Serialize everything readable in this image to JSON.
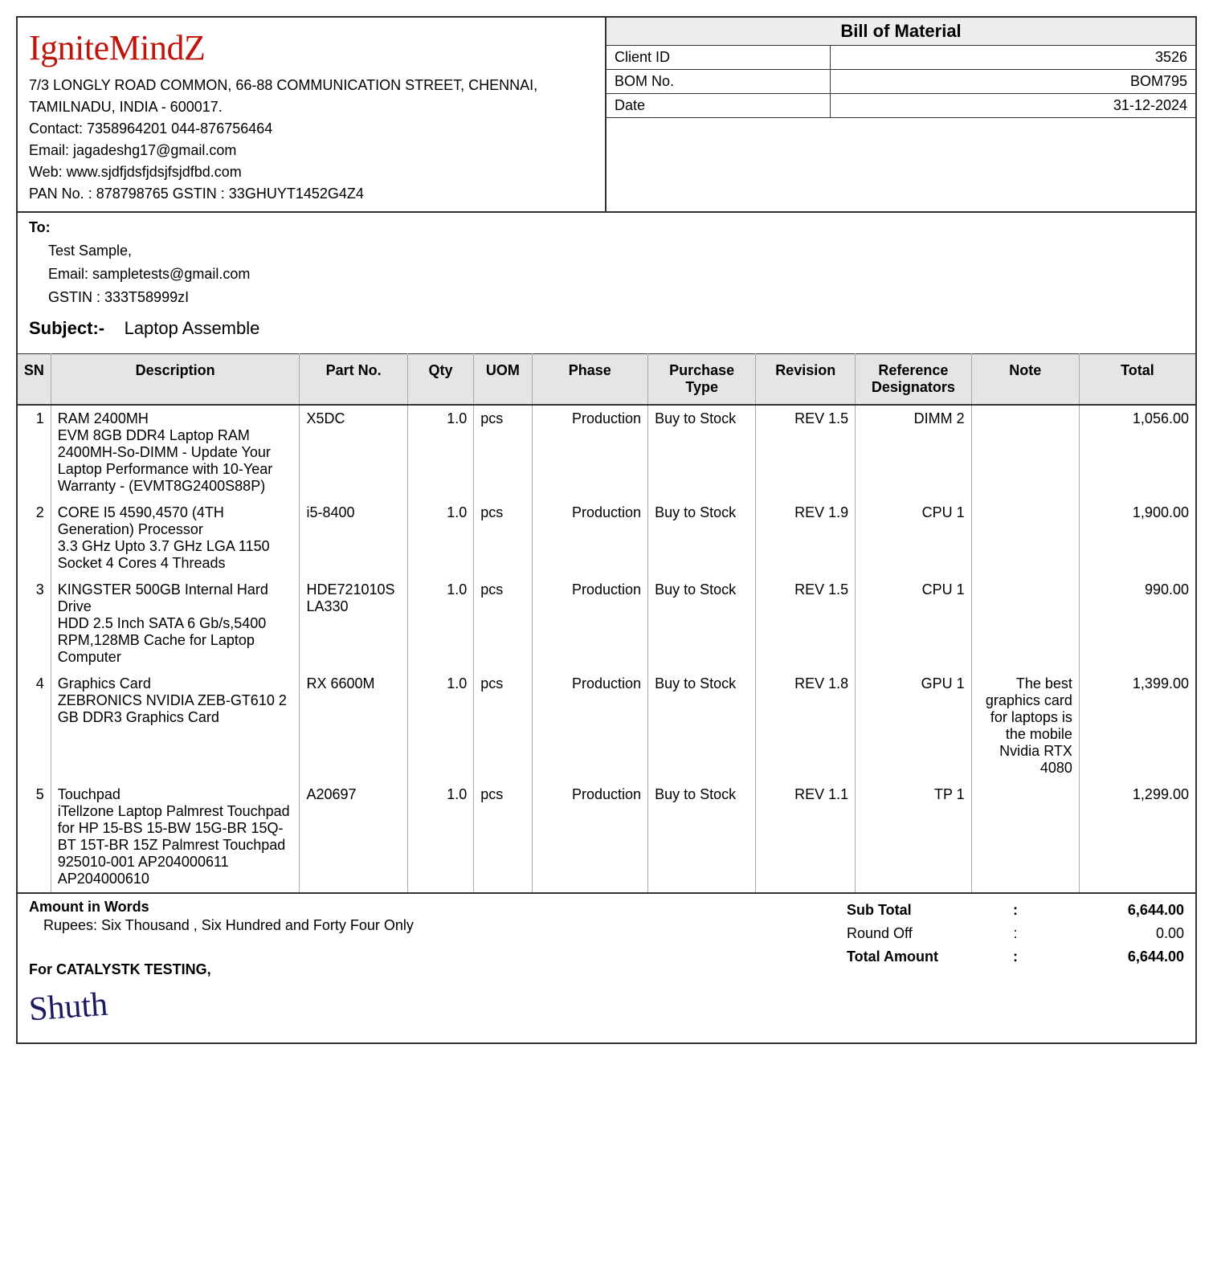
{
  "company": {
    "name": "IgniteMindZ",
    "address_line1": "7/3 LONGLY ROAD COMMON, 66-88 COMMUNICATION STREET, CHENNAI,",
    "address_line2": "TAMILNADU, INDIA - 600017.",
    "contact_label": "Contact: 7358964201 044-876756464",
    "email_label": "Email: jagadeshg17@gmail.com",
    "web_label": "Web: www.sjdfjdsfjdsjfsjdfbd.com",
    "pan_label": "PAN No. : 878798765 GSTIN : 33GHUYT1452G4Z4"
  },
  "header": {
    "title": "Bill of Material",
    "client_id_label": "Client ID",
    "client_id": "3526",
    "bom_no_label": "BOM No.",
    "bom_no": "BOM795",
    "date_label": "Date",
    "date": "31-12-2024"
  },
  "to": {
    "label": "To:",
    "name": "Test Sample,",
    "email": "Email: sampletests@gmail.com",
    "gstin": "GSTIN : 333T58999zI"
  },
  "subject": {
    "label": "Subject:-",
    "text": "Laptop Assemble"
  },
  "columns": {
    "sn": "SN",
    "desc": "Description",
    "part": "Part No.",
    "qty": "Qty",
    "uom": "UOM",
    "phase": "Phase",
    "ptype": "Purchase Type",
    "rev": "Revision",
    "ref": "Reference Designators",
    "note": "Note",
    "total": "Total"
  },
  "rows": [
    {
      "sn": "1",
      "title": "RAM 2400MH",
      "detail": "EVM 8GB DDR4 Laptop RAM 2400MH-So-DIMM - Update Your Laptop Performance with 10-Year Warranty - (EVMT8G2400S88P)",
      "part": "X5DC",
      "qty": "1.0",
      "uom": "pcs",
      "phase": "Production",
      "ptype": "Buy to Stock",
      "rev": "REV 1.5",
      "ref": "DIMM 2",
      "note": "",
      "total": "1,056.00"
    },
    {
      "sn": "2",
      "title": "CORE I5 4590,4570 (4TH Generation) Processor",
      "detail": "3.3 GHz Upto 3.7 GHz LGA 1150 Socket 4 Cores 4 Threads",
      "part": "i5-8400",
      "qty": "1.0",
      "uom": "pcs",
      "phase": "Production",
      "ptype": "Buy to Stock",
      "rev": "REV 1.9",
      "ref": "CPU 1",
      "note": "",
      "total": "1,900.00"
    },
    {
      "sn": "3",
      "title": "KINGSTER 500GB Internal Hard Drive",
      "detail": "HDD 2.5 Inch SATA 6 Gb/s,5400 RPM,128MB Cache for Laptop Computer",
      "part": "HDE721010SLA330",
      "qty": "1.0",
      "uom": "pcs",
      "phase": "Production",
      "ptype": "Buy to Stock",
      "rev": "REV 1.5",
      "ref": "CPU 1",
      "note": "",
      "total": "990.00"
    },
    {
      "sn": "4",
      "title": "Graphics Card",
      "detail": "ZEBRONICS NVIDIA ZEB-GT610 2 GB DDR3 Graphics Card",
      "part": "RX 6600M",
      "qty": "1.0",
      "uom": "pcs",
      "phase": "Production",
      "ptype": "Buy to Stock",
      "rev": "REV 1.8",
      "ref": "GPU 1",
      "note": "The best graphics card for laptops is the mobile Nvidia RTX 4080",
      "total": "1,399.00"
    },
    {
      "sn": "5",
      "title": "Touchpad",
      "detail": "iTellzone Laptop Palmrest Touchpad for HP 15-BS 15-BW 15G-BR 15Q-BT 15T-BR 15Z Palmrest Touchpad 925010-001 AP204000611 AP204000610",
      "part": "A20697",
      "qty": "1.0",
      "uom": "pcs",
      "phase": "Production",
      "ptype": "Buy to Stock",
      "rev": "REV 1.1",
      "ref": "TP 1",
      "note": "",
      "total": "1,299.00"
    }
  ],
  "footer": {
    "aiw_label": "Amount in Words",
    "aiw_text": "Rupees: Six Thousand , Six Hundred and Forty Four Only",
    "for_line": "For CATALYSTK TESTING,",
    "subtotal_label": "Sub Total",
    "subtotal": "6,644.00",
    "roundoff_label": "Round Off",
    "roundoff": "0.00",
    "total_label": "Total Amount",
    "total": "6,644.00"
  }
}
